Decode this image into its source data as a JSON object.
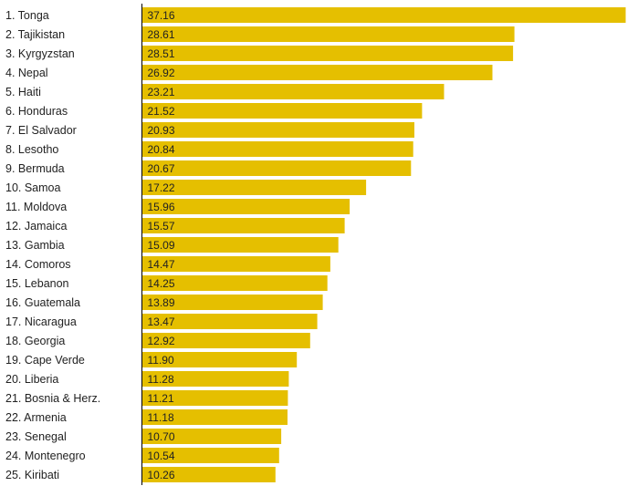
{
  "chart_data": {
    "type": "bar",
    "orientation": "horizontal",
    "bar_color": "#e5bf00",
    "axis_color": "#000000",
    "grid": false,
    "xlim": [
      0,
      37.16
    ],
    "categories": [
      "1. Tonga",
      "2. Tajikistan",
      "3. Kyrgyzstan",
      "4. Nepal",
      "5. Haiti",
      "6. Honduras",
      "7. El Salvador",
      "8. Lesotho",
      "9. Bermuda",
      "10. Samoa",
      "11. Moldova",
      "12. Jamaica",
      "13. Gambia",
      "14. Comoros",
      "15. Lebanon",
      "16. Guatemala",
      "17. Nicaragua",
      "18. Georgia",
      "19. Cape Verde",
      "20. Liberia",
      "21. Bosnia & Herz.",
      "22. Armenia",
      "23. Senegal",
      "24. Montenegro",
      "25. Kiribati"
    ],
    "values": [
      37.16,
      28.61,
      28.51,
      26.92,
      23.21,
      21.52,
      20.93,
      20.84,
      20.67,
      17.22,
      15.96,
      15.57,
      15.09,
      14.47,
      14.25,
      13.89,
      13.47,
      12.92,
      11.9,
      11.28,
      11.21,
      11.18,
      10.7,
      10.54,
      10.26
    ],
    "value_labels": [
      "37.16",
      "28.61",
      "28.51",
      "26.92",
      "23.21",
      "21.52",
      "20.93",
      "20.84",
      "20.67",
      "17.22",
      "15.96",
      "15.57",
      "15.09",
      "14.47",
      "14.25",
      "13.89",
      "13.47",
      "12.92",
      "11.90",
      "11.28",
      "11.21",
      "11.18",
      "10.70",
      "10.54",
      "10.26"
    ]
  }
}
